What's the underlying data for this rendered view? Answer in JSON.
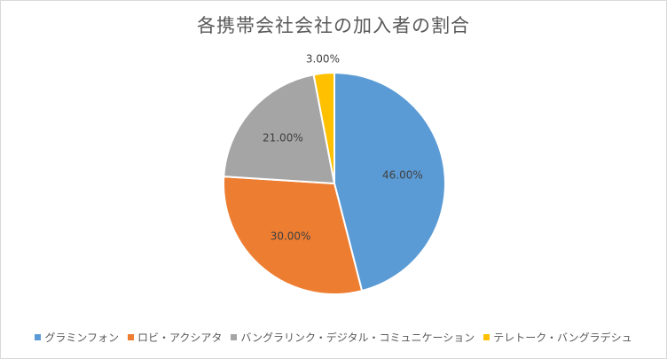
{
  "chart_data": {
    "type": "pie",
    "title": "各携帯会社会社の加入者の割合",
    "slices": [
      {
        "name": "グラミンフォン",
        "value": 46.0,
        "label": "46.00%",
        "color": "#5b9bd5"
      },
      {
        "name": "ロビ・アクシアタ",
        "value": 30.0,
        "label": "30.00%",
        "color": "#ed7d31"
      },
      {
        "name": "バングラリンク・デジタル・コミュニケーション",
        "value": 21.0,
        "label": "21.00%",
        "color": "#a5a5a5"
      },
      {
        "name": "テレトーク・バングラデシュ",
        "value": 3.0,
        "label": "3.00%",
        "color": "#ffc000"
      }
    ],
    "legend_position": "bottom"
  }
}
